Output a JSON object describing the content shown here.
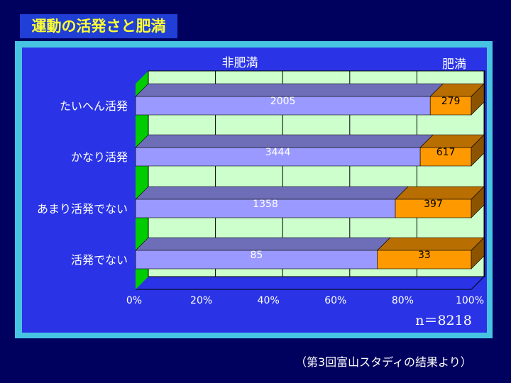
{
  "page": {
    "title": "運動の活発さと肥満"
  },
  "chart_data": {
    "type": "bar",
    "stacked": "percent",
    "orientation": "horizontal",
    "three_d": true,
    "categories": [
      "たいへん活発",
      "かなり活発",
      "あまり活発でない",
      "活発でない"
    ],
    "series": [
      {
        "name": "非肥満",
        "values": [
          2005,
          3444,
          1358,
          85
        ],
        "color": "#9999ff"
      },
      {
        "name": "肥満",
        "values": [
          279,
          617,
          397,
          33
        ],
        "color": "#ff9900"
      }
    ],
    "xlim": [
      0,
      100
    ],
    "x_ticks": [
      "0%",
      "20%",
      "40%",
      "60%",
      "80%",
      "100%"
    ],
    "grid": true,
    "plot_background": "#ccffcc",
    "floor_color": "#00cc00",
    "legend_placement": "top",
    "annotation": "n＝8218"
  },
  "footnote": "（第3回富山スタディの結果より）"
}
